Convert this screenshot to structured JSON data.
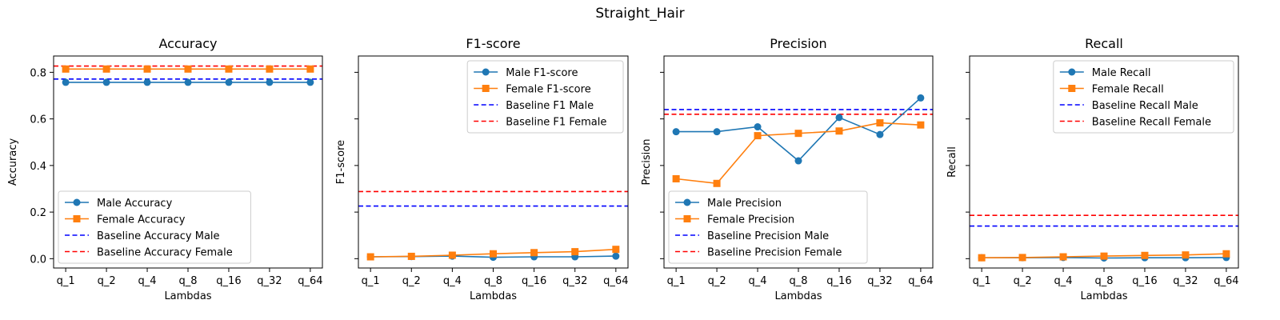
{
  "figure": {
    "suptitle": "Straight_Hair"
  },
  "chart_data": [
    {
      "type": "line",
      "title": "Accuracy",
      "xlabel": "Lambdas",
      "ylabel": "Accuracy",
      "categories": [
        "q_1",
        "q_2",
        "q_4",
        "q_8",
        "q_16",
        "q_32",
        "q_64"
      ],
      "ylim": [
        -0.04,
        0.87
      ],
      "yticks": [
        0.0,
        0.2,
        0.4,
        0.6,
        0.8
      ],
      "show_ytick_labels": true,
      "grid": false,
      "legend_position": "lower-left",
      "series": [
        {
          "name": "Male Accuracy",
          "values": [
            0.757,
            0.757,
            0.757,
            0.757,
            0.757,
            0.757,
            0.757
          ],
          "color": "#1f77b4",
          "marker": "circle"
        },
        {
          "name": "Female Accuracy",
          "values": [
            0.814,
            0.814,
            0.814,
            0.814,
            0.814,
            0.814,
            0.814
          ],
          "color": "#ff7f0e",
          "marker": "square"
        }
      ],
      "baselines": [
        {
          "name": "Baseline Accuracy Male",
          "value": 0.771,
          "color": "#0000ff"
        },
        {
          "name": "Baseline Accuracy Female",
          "value": 0.827,
          "color": "#ff0000"
        }
      ]
    },
    {
      "type": "line",
      "title": "F1-score",
      "xlabel": "Lambdas",
      "ylabel": "F1-score",
      "categories": [
        "q_1",
        "q_2",
        "q_4",
        "q_8",
        "q_16",
        "q_32",
        "q_64"
      ],
      "ylim": [
        -0.04,
        0.87
      ],
      "yticks": [
        0.0,
        0.2,
        0.4,
        0.6,
        0.8
      ],
      "show_ytick_labels": false,
      "grid": false,
      "legend_position": "upper-right",
      "series": [
        {
          "name": "Male F1-score",
          "values": [
            0.008,
            0.009,
            0.011,
            0.006,
            0.008,
            0.008,
            0.011
          ],
          "color": "#1f77b4",
          "marker": "circle"
        },
        {
          "name": "Female F1-score",
          "values": [
            0.008,
            0.01,
            0.015,
            0.021,
            0.026,
            0.03,
            0.04
          ],
          "color": "#ff7f0e",
          "marker": "square"
        }
      ],
      "baselines": [
        {
          "name": "Baseline F1 Male",
          "value": 0.226,
          "color": "#0000ff"
        },
        {
          "name": "Baseline F1 Female",
          "value": 0.288,
          "color": "#ff0000"
        }
      ]
    },
    {
      "type": "line",
      "title": "Precision",
      "xlabel": "Lambdas",
      "ylabel": "Precision",
      "categories": [
        "q_1",
        "q_2",
        "q_4",
        "q_8",
        "q_16",
        "q_32",
        "q_64"
      ],
      "ylim": [
        -0.04,
        0.87
      ],
      "yticks": [
        0.0,
        0.2,
        0.4,
        0.6,
        0.8
      ],
      "show_ytick_labels": false,
      "grid": false,
      "legend_position": "lower-left",
      "series": [
        {
          "name": "Male Precision",
          "values": [
            0.545,
            0.545,
            0.566,
            0.42,
            0.606,
            0.533,
            0.69
          ],
          "color": "#1f77b4",
          "marker": "circle"
        },
        {
          "name": "Female Precision",
          "values": [
            0.343,
            0.323,
            0.528,
            0.538,
            0.548,
            0.583,
            0.574
          ],
          "color": "#ff7f0e",
          "marker": "square"
        }
      ],
      "baselines": [
        {
          "name": "Baseline Precision Male",
          "value": 0.64,
          "color": "#0000ff"
        },
        {
          "name": "Baseline Precision Female",
          "value": 0.62,
          "color": "#ff0000"
        }
      ]
    },
    {
      "type": "line",
      "title": "Recall",
      "xlabel": "Lambdas",
      "ylabel": "Recall",
      "categories": [
        "q_1",
        "q_2",
        "q_4",
        "q_8",
        "q_16",
        "q_32",
        "q_64"
      ],
      "ylim": [
        -0.04,
        0.87
      ],
      "yticks": [
        0.0,
        0.2,
        0.4,
        0.6,
        0.8
      ],
      "show_ytick_labels": false,
      "grid": false,
      "legend_position": "upper-right",
      "series": [
        {
          "name": "Male Recall",
          "values": [
            0.004,
            0.004,
            0.005,
            0.003,
            0.004,
            0.004,
            0.005
          ],
          "color": "#1f77b4",
          "marker": "circle"
        },
        {
          "name": "Female Recall",
          "values": [
            0.004,
            0.005,
            0.008,
            0.011,
            0.014,
            0.016,
            0.021
          ],
          "color": "#ff7f0e",
          "marker": "square"
        }
      ],
      "baselines": [
        {
          "name": "Baseline Recall Male",
          "value": 0.14,
          "color": "#0000ff"
        },
        {
          "name": "Baseline Recall Female",
          "value": 0.186,
          "color": "#ff0000"
        }
      ]
    }
  ]
}
